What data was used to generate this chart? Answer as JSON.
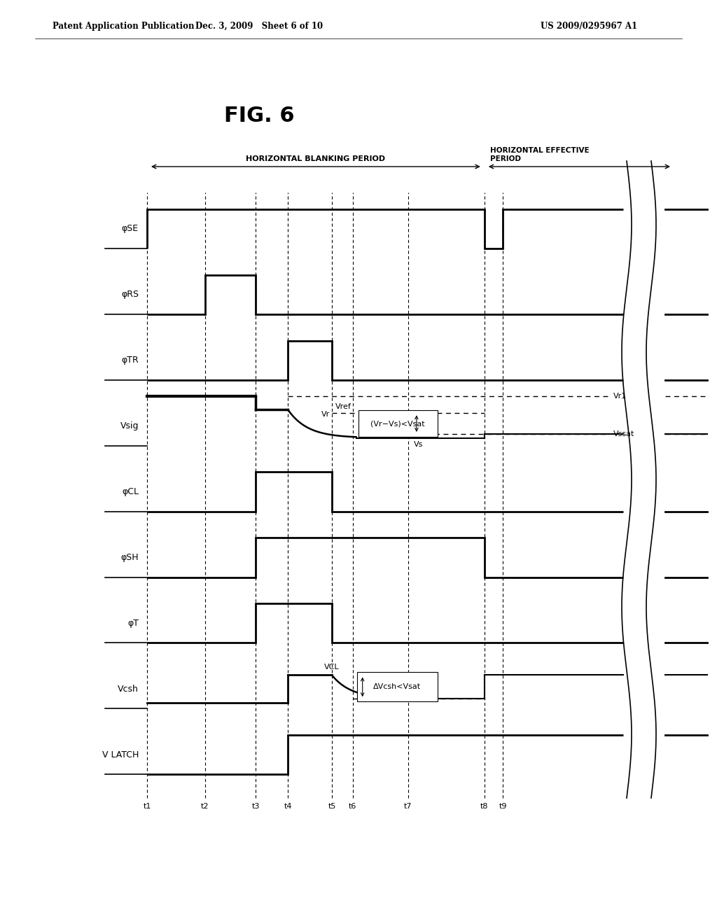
{
  "fig_label": "FIG. 6",
  "header_left": "Patent Application Publication",
  "header_mid": "Dec. 3, 2009   Sheet 6 of 10",
  "header_right": "US 2009/0295967 A1",
  "background_color": "#ffffff",
  "signals": [
    "φSE",
    "φRS",
    "φTR",
    "Vsig",
    "φCL",
    "φSH",
    "φT",
    "Vcsh",
    "V LATCH"
  ],
  "time_labels": [
    "t1",
    "t2",
    "t3",
    "t4",
    "t5",
    "t6",
    "t7",
    "t8",
    "t9"
  ],
  "blanking_period_label": "HORIZONTAL BLANKING PERIOD",
  "effective_period_label_line1": "HORIZONTAL EFFECTIVE",
  "effective_period_label_line2": "PERIOD"
}
